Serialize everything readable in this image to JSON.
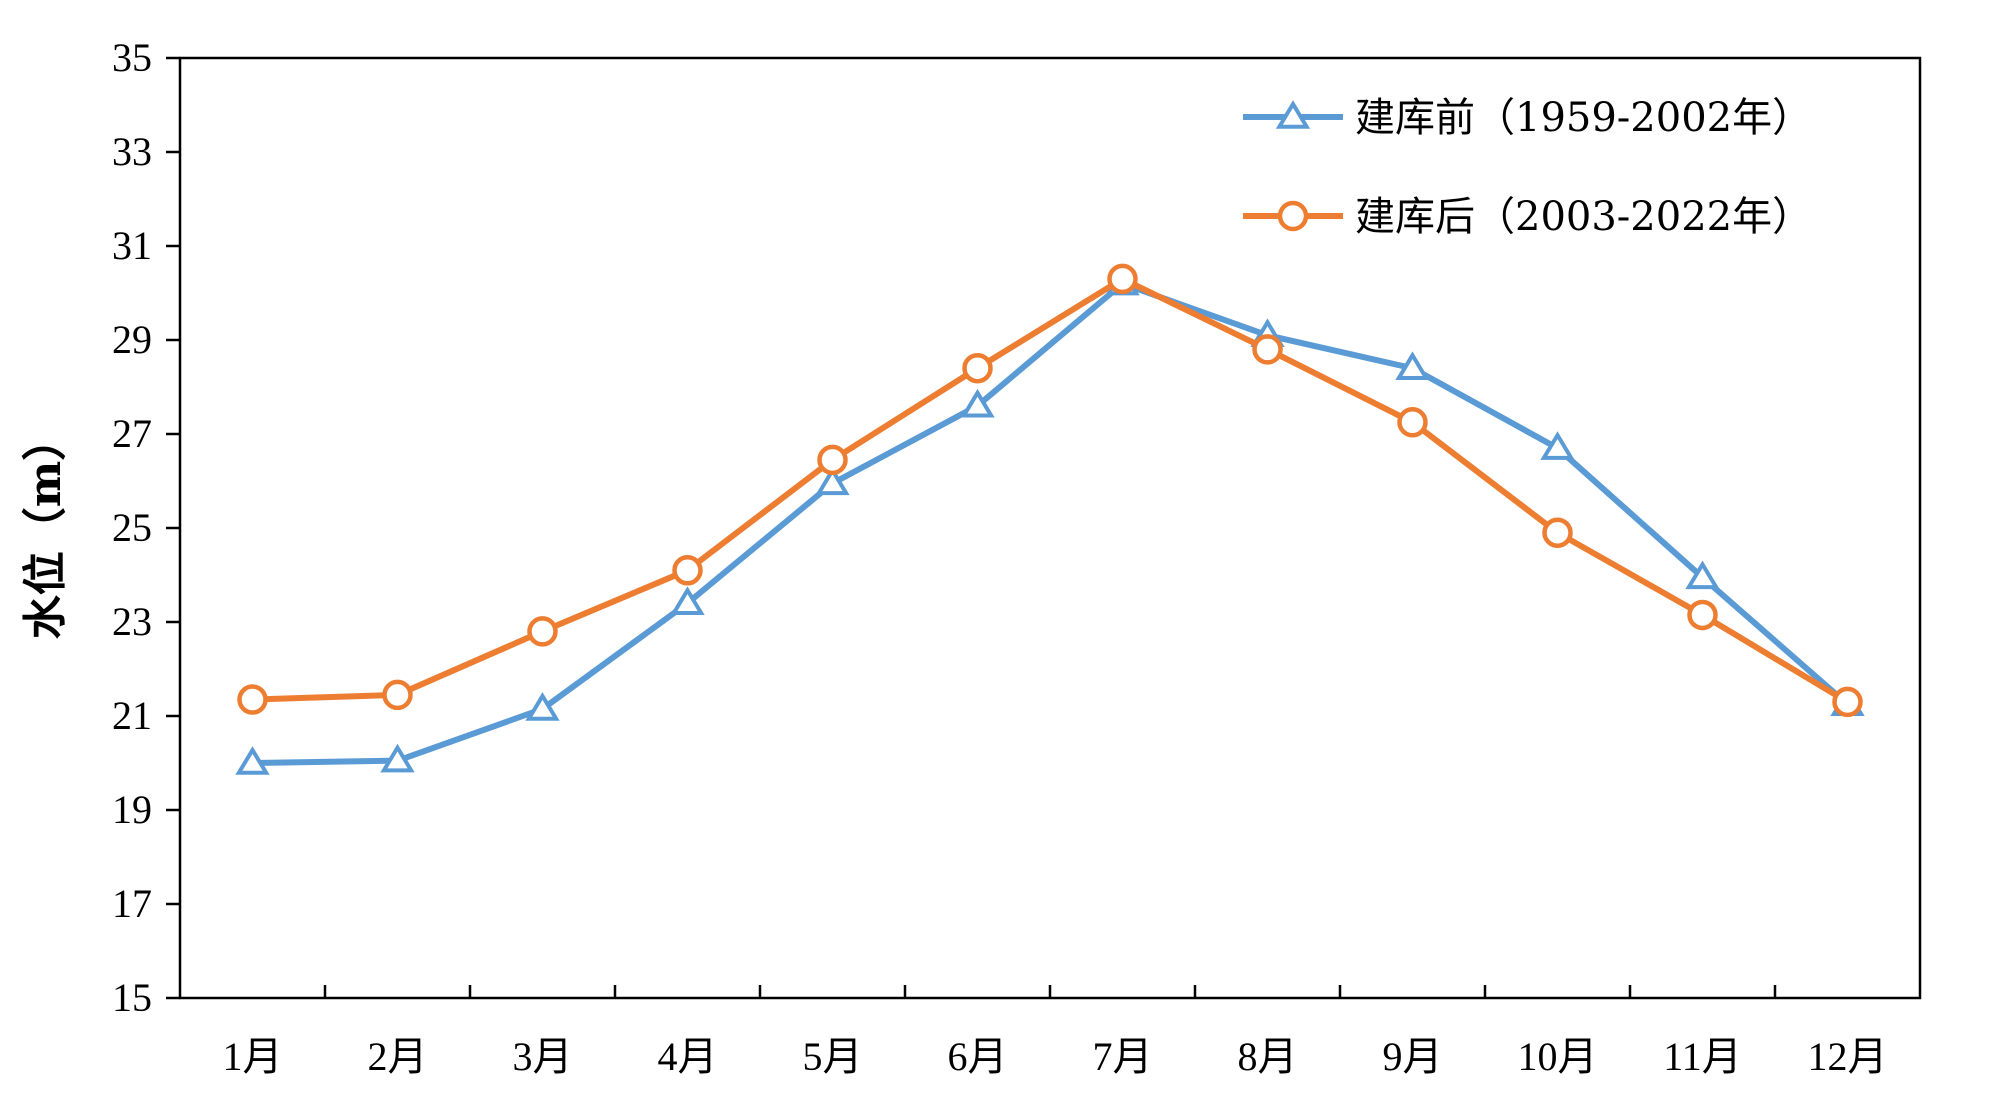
{
  "chart_data": {
    "type": "line",
    "title": "",
    "xlabel": "",
    "ylabel": "水位（m）",
    "categories": [
      "1月",
      "2月",
      "3月",
      "4月",
      "5月",
      "6月",
      "7月",
      "8月",
      "9月",
      "10月",
      "11月",
      "12月"
    ],
    "ylim": [
      15,
      35
    ],
    "yticks": [
      15,
      17,
      19,
      21,
      23,
      25,
      27,
      29,
      31,
      33,
      35
    ],
    "grid": false,
    "legend_position": "top-right",
    "series": [
      {
        "name": "建库前（1959-2002年）",
        "color": "#5b9bd5",
        "marker": "triangle",
        "values": [
          20.0,
          20.05,
          21.15,
          23.4,
          25.95,
          27.6,
          30.2,
          29.1,
          28.4,
          26.7,
          23.95,
          21.25
        ]
      },
      {
        "name": "建库后（2003-2022年）",
        "color": "#ed7d31",
        "marker": "circle",
        "values": [
          21.35,
          21.45,
          22.8,
          24.1,
          26.45,
          28.4,
          30.3,
          28.8,
          27.25,
          24.9,
          23.15,
          21.3
        ]
      }
    ]
  }
}
